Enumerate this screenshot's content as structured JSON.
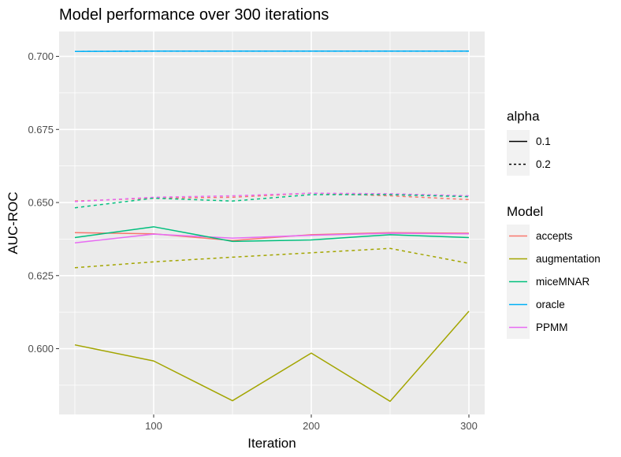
{
  "chart_data": {
    "type": "line",
    "title": "Model performance over 300 iterations",
    "xlabel": "Iteration",
    "ylabel": "AUC-ROC",
    "xlim": [
      40,
      310
    ],
    "ylim": [
      0.5775,
      0.7085
    ],
    "x_ticks": [
      100,
      200,
      300
    ],
    "x_tick_labels": [
      "100",
      "200",
      "300"
    ],
    "y_ticks": [
      0.6,
      0.625,
      0.65,
      0.675,
      0.7
    ],
    "y_tick_labels": [
      "0.600",
      "0.625",
      "0.650",
      "0.675",
      "0.700"
    ],
    "x": [
      50,
      100,
      150,
      200,
      250,
      300
    ],
    "grid": true,
    "legend_position": "right",
    "legends": [
      {
        "title": "alpha",
        "entries": [
          {
            "label": "0.1",
            "linetype": "solid"
          },
          {
            "label": "0.2",
            "linetype": "dashed"
          }
        ]
      },
      {
        "title": "Model",
        "entries": [
          {
            "label": "accepts",
            "color": "#F8766D"
          },
          {
            "label": "augmentation",
            "color": "#A3A500"
          },
          {
            "label": "miceMNAR",
            "color": "#00BF7D"
          },
          {
            "label": "oracle",
            "color": "#00B0F6"
          },
          {
            "label": "PPMM",
            "color": "#E76BF3"
          }
        ]
      }
    ],
    "series": [
      {
        "model": "oracle",
        "alpha": "0.1",
        "color": "#00B0F6",
        "linetype": "solid",
        "values": [
          0.7017,
          0.7018,
          0.7018,
          0.7018,
          0.7018,
          0.7018
        ]
      },
      {
        "model": "oracle",
        "alpha": "0.2",
        "color": "#00B0F6",
        "linetype": "dashed",
        "values": [
          0.7017,
          0.7018,
          0.7018,
          0.7018,
          0.7018,
          0.7018
        ]
      },
      {
        "model": "accepts",
        "alpha": "0.2",
        "color": "#F8766D",
        "linetype": "dashed",
        "values": [
          0.6505,
          0.6515,
          0.6518,
          0.6532,
          0.6523,
          0.651
        ]
      },
      {
        "model": "PPMM",
        "alpha": "0.2",
        "color": "#E76BF3",
        "linetype": "dashed",
        "values": [
          0.6503,
          0.6518,
          0.6523,
          0.6532,
          0.653,
          0.6523
        ]
      },
      {
        "model": "miceMNAR",
        "alpha": "0.2",
        "color": "#00BF7D",
        "linetype": "dashed",
        "values": [
          0.6482,
          0.6515,
          0.6505,
          0.6527,
          0.6527,
          0.652
        ]
      },
      {
        "model": "accepts",
        "alpha": "0.1",
        "color": "#F8766D",
        "linetype": "solid",
        "values": [
          0.6397,
          0.6393,
          0.637,
          0.639,
          0.6397,
          0.6395
        ]
      },
      {
        "model": "PPMM",
        "alpha": "0.1",
        "color": "#E76BF3",
        "linetype": "solid",
        "values": [
          0.6362,
          0.6392,
          0.6378,
          0.6388,
          0.6395,
          0.6393
        ]
      },
      {
        "model": "miceMNAR",
        "alpha": "0.1",
        "color": "#00BF7D",
        "linetype": "solid",
        "values": [
          0.638,
          0.6417,
          0.6367,
          0.6372,
          0.639,
          0.638
        ]
      },
      {
        "model": "augmentation",
        "alpha": "0.2",
        "color": "#A3A500",
        "linetype": "dashed",
        "values": [
          0.6277,
          0.6297,
          0.6313,
          0.6328,
          0.6343,
          0.6292
        ]
      },
      {
        "model": "augmentation",
        "alpha": "0.1",
        "color": "#A3A500",
        "linetype": "solid",
        "values": [
          0.6013,
          0.5958,
          0.5822,
          0.5985,
          0.582,
          0.6128
        ]
      }
    ]
  }
}
